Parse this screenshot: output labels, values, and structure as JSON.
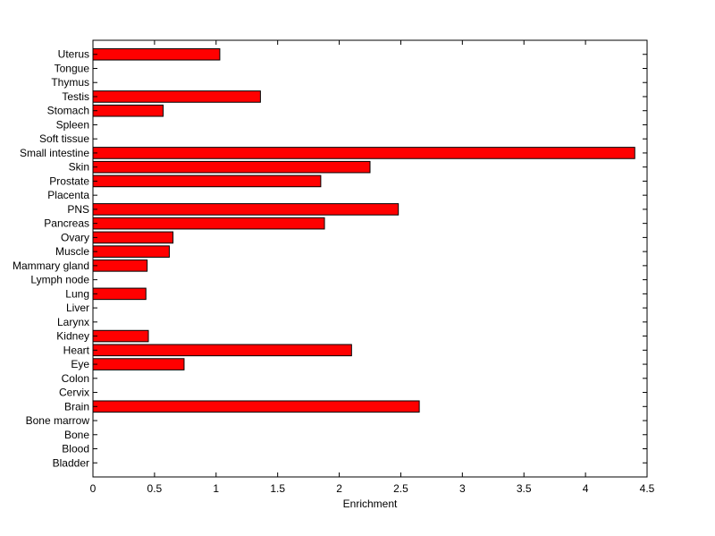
{
  "chart_data": {
    "type": "bar",
    "orientation": "horizontal",
    "title": "",
    "xlabel": "Enrichment",
    "ylabel": "",
    "xlim": [
      0,
      4.5
    ],
    "xticks": [
      "0",
      "0.5",
      "1",
      "1.5",
      "2",
      "2.5",
      "3",
      "3.5",
      "4",
      "4.5"
    ],
    "grid": false,
    "bar_color": "#ff0000",
    "categories": [
      "Uterus",
      "Tongue",
      "Thymus",
      "Testis",
      "Stomach",
      "Spleen",
      "Soft tissue",
      "Small intestine",
      "Skin",
      "Prostate",
      "Placenta",
      "PNS",
      "Pancreas",
      "Ovary",
      "Muscle",
      "Mammary gland",
      "Lymph node",
      "Lung",
      "Liver",
      "Larynx",
      "Kidney",
      "Heart",
      "Eye",
      "Colon",
      "Cervix",
      "Brain",
      "Bone marrow",
      "Bone",
      "Blood",
      "Bladder"
    ],
    "values": [
      1.03,
      0,
      0,
      1.36,
      0.57,
      0,
      0,
      4.4,
      2.25,
      1.85,
      0,
      2.48,
      1.88,
      0.65,
      0.62,
      0.44,
      0,
      0.43,
      0,
      0,
      0.45,
      2.1,
      0.74,
      0,
      0,
      2.65,
      0,
      0,
      0,
      0
    ]
  }
}
